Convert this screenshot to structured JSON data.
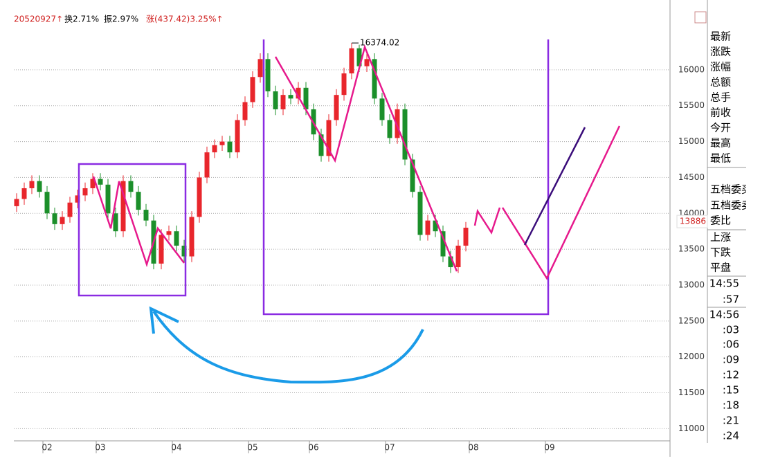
{
  "header": {
    "code": "20520927↑",
    "turnover": "换2.71%",
    "amplitude": "振2.97%",
    "change": "涨(437.42)3.25%↑"
  },
  "chart_data": {
    "type": "candlestick",
    "categories": [
      null,
      null,
      null,
      null,
      "02",
      null,
      null,
      null,
      null,
      null,
      null,
      "03",
      null,
      null,
      null,
      null,
      null,
      null,
      null,
      null,
      null,
      "04",
      null,
      null,
      null,
      null,
      null,
      null,
      null,
      null,
      null,
      "05",
      null,
      null,
      null,
      null,
      null,
      null,
      null,
      "06",
      null,
      null,
      null,
      null,
      null,
      null,
      null,
      null,
      null,
      "07",
      null,
      null,
      null,
      null,
      null,
      null,
      null,
      null,
      null,
      null,
      "08",
      null,
      null,
      null,
      null,
      null,
      null,
      null,
      null,
      null,
      "09",
      null,
      null,
      null,
      null,
      null,
      null,
      null,
      null,
      null,
      null,
      null,
      null,
      null,
      null,
      null
    ],
    "open": [
      14100,
      14200,
      14350,
      14450,
      14300,
      14000,
      13850,
      13950,
      14150,
      14250,
      14350,
      14480,
      14400,
      14000,
      13750,
      14450,
      14300,
      14050,
      13900,
      13300,
      13700,
      13750,
      13550,
      13400,
      13950,
      14500,
      14850,
      14950,
      15000,
      14850,
      15300,
      15550,
      15900,
      16150,
      15700,
      15450,
      15650,
      15600,
      15750,
      15450,
      15100,
      14800,
      15300,
      15650,
      15950,
      16300,
      16050,
      16150,
      15600,
      15300,
      15050,
      15450,
      14750,
      14300,
      13700,
      13900,
      13750,
      13400,
      13250,
      13550,
      null,
      null,
      null,
      null,
      null,
      null,
      null,
      null,
      null,
      null,
      null,
      null,
      null,
      null,
      null,
      null,
      null,
      null,
      null,
      null,
      null,
      null,
      null,
      null,
      null,
      null
    ],
    "high": [
      14280,
      14430,
      14530,
      14530,
      14380,
      14080,
      14030,
      14230,
      14330,
      14430,
      14560,
      14560,
      14480,
      14080,
      14530,
      14530,
      14380,
      14130,
      13980,
      13780,
      13830,
      13830,
      13630,
      14030,
      14580,
      14930,
      15030,
      15080,
      15080,
      15380,
      15630,
      15980,
      16230,
      16230,
      15780,
      15730,
      15730,
      15830,
      15830,
      15530,
      15180,
      15380,
      15730,
      16030,
      16374.02,
      16350,
      16230,
      16230,
      15680,
      15380,
      15530,
      15530,
      14830,
      14380,
      13980,
      13980,
      13830,
      13480,
      13630,
      13880,
      null,
      null,
      null,
      null,
      null,
      null,
      null,
      null,
      null,
      null,
      null,
      null,
      null,
      null,
      null,
      null,
      null,
      null,
      null,
      null,
      null,
      null,
      null,
      null,
      null,
      null
    ],
    "low": [
      14020,
      14120,
      14270,
      14220,
      13920,
      13770,
      13770,
      13870,
      14070,
      14170,
      14270,
      14320,
      13920,
      13670,
      13670,
      14220,
      13970,
      13820,
      13220,
      13220,
      13620,
      13470,
      13320,
      13320,
      13870,
      14420,
      14770,
      14870,
      14770,
      14770,
      15220,
      15470,
      15820,
      15620,
      15370,
      15370,
      15520,
      15520,
      15370,
      15020,
      14720,
      14720,
      15220,
      15570,
      15870,
      15970,
      15970,
      15520,
      15220,
      14970,
      14970,
      14670,
      14220,
      13620,
      13620,
      13670,
      13320,
      13170,
      13170,
      13470,
      null,
      null,
      null,
      null,
      null,
      null,
      null,
      null,
      null,
      null,
      null,
      null,
      null,
      null,
      null,
      null,
      null,
      null,
      null,
      null,
      null,
      null,
      null,
      null,
      null,
      null
    ],
    "close": [
      14200,
      14350,
      14450,
      14300,
      14000,
      13850,
      13950,
      14150,
      14250,
      14350,
      14480,
      14400,
      14000,
      13750,
      14450,
      14300,
      14050,
      13900,
      13300,
      13700,
      13750,
      13550,
      13400,
      13950,
      14500,
      14850,
      14950,
      15000,
      14850,
      15300,
      15550,
      15900,
      16150,
      15700,
      15450,
      15650,
      15600,
      15750,
      15450,
      15100,
      14800,
      15300,
      15650,
      15950,
      16300,
      16050,
      16150,
      15600,
      15300,
      15050,
      15450,
      14750,
      14300,
      13700,
      13900,
      13750,
      13400,
      13250,
      13550,
      13800,
      null,
      null,
      null,
      null,
      null,
      null,
      null,
      null,
      null,
      null,
      null,
      null,
      null,
      null,
      null,
      null,
      null,
      null,
      null,
      null,
      null,
      null,
      null,
      null,
      null,
      null
    ],
    "up_color": "#e8262c",
    "down_color": "#1b8f2a",
    "ylim": [
      10830,
      16780
    ],
    "yticks": [
      11000,
      11500,
      12000,
      12500,
      13000,
      13500,
      14000,
      14500,
      15000,
      15500,
      16000
    ],
    "grid": true,
    "last_price": 13886,
    "max_index": 44
  },
  "side_panel": {
    "quote": [
      "最新",
      "涨跌",
      "涨幅",
      "总额",
      "总手",
      "前收",
      "今开",
      "最高",
      "最低"
    ],
    "order": [
      "五档委买",
      "五档委卖",
      "委比"
    ],
    "breadth": [
      "上涨",
      "下跌",
      "平盘"
    ],
    "times": [
      "14:55",
      ":57",
      "14:56",
      ":03",
      ":06",
      ":09",
      ":12",
      ":15",
      ":18",
      ":21",
      ":24"
    ]
  }
}
